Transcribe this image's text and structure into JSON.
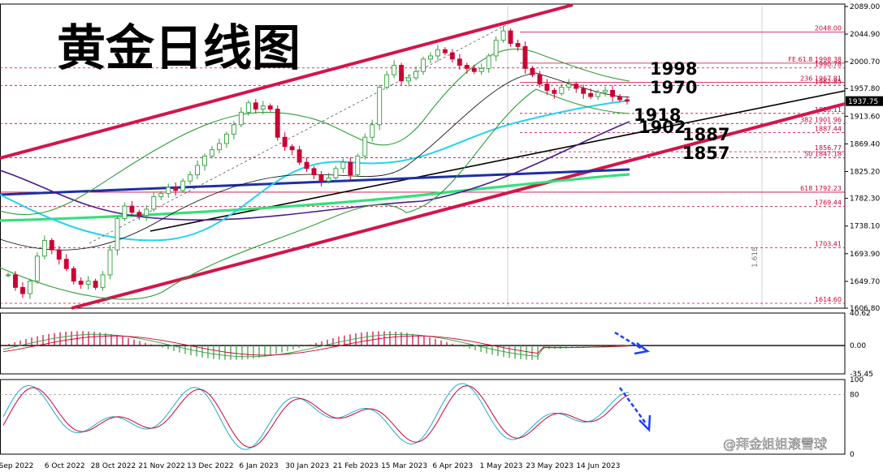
{
  "title": "黄金日线图",
  "watermark": "@拜金姐姐滚雪球",
  "current_price": "1937.75",
  "fib_vertical_label": "1.618",
  "colors": {
    "channel": "#d2154a",
    "bollinger": "#2e9e3a",
    "ma_cyan": "#22d3ee",
    "ma_blue": "#1d2fa8",
    "ma_green": "#34e07a",
    "ma_purple": "#4a1a8a",
    "trend_black": "#000000",
    "level_line": "#cc0033",
    "bull": "#2e9e3a",
    "bear": "#cc0033",
    "arrow": "#1e40ff"
  },
  "big_labels": [
    "1998",
    "1970",
    "1918",
    "1902",
    "1887",
    "1857"
  ],
  "chart_data": [
    {
      "type": "candlestick",
      "title": "黄金日线图",
      "x_labels": [
        "Sep 2022",
        "6 Oct 2022",
        "28 Oct 2022",
        "21 Nov 2022",
        "13 Dec 2022",
        "6 Jan 2023",
        "30 Jan 2023",
        "21 Feb 2023",
        "15 Mar 2023",
        "6 Apr 2023",
        "1 May 2023",
        "23 May 2023",
        "14 Jun 2023"
      ],
      "y_ticks": [
        "2089.00",
        "2044.90",
        "2000.70",
        "1957.80",
        "1913.60",
        "1869.40",
        "1825.20",
        "1782.30",
        "1738.10",
        "1693.90",
        "1649.70",
        "1606.80"
      ],
      "ylim": [
        1606.8,
        2089.0
      ],
      "levels": [
        {
          "label": "2048.00",
          "value": 2048.0
        },
        {
          "label": "FE 61.8",
          "value_label": "1998.38",
          "value": 1998.38
        },
        {
          "label": "",
          "value_label": "1990.78",
          "value": 1990.78
        },
        {
          "label": "236",
          "value_label": "1967.81",
          "value": 1967.81
        },
        {
          "label": "",
          "value_label": "1962.85",
          "value": 1962.85
        },
        {
          "label": "",
          "value_label": "1918.11",
          "value": 1918.11
        },
        {
          "label": "382",
          "value_label": "1901.96",
          "value": 1901.96
        },
        {
          "label": "",
          "value_label": "1887.44",
          "value": 1887.44
        },
        {
          "label": "",
          "value_label": "1856.77",
          "value": 1856.77
        },
        {
          "label": "50",
          "value_label": "1847.18",
          "value": 1847.18
        },
        {
          "label": "618",
          "value_label": "1792.23",
          "value": 1792.23
        },
        {
          "label": "",
          "value_label": "1769.44",
          "value": 1769.44
        },
        {
          "label": "",
          "value_label": "1703.41",
          "value": 1703.41
        },
        {
          "label": "",
          "value_label": "1614.60",
          "value": 1614.6
        }
      ],
      "close_path": [
        1660,
        1640,
        1630,
        1650,
        1690,
        1715,
        1700,
        1685,
        1670,
        1650,
        1645,
        1650,
        1640,
        1660,
        1700,
        1750,
        1770,
        1760,
        1755,
        1765,
        1785,
        1790,
        1800,
        1795,
        1810,
        1820,
        1835,
        1850,
        1860,
        1870,
        1885,
        1900,
        1920,
        1935,
        1925,
        1930,
        1925,
        1880,
        1865,
        1860,
        1840,
        1830,
        1820,
        1810,
        1815,
        1830,
        1840,
        1820,
        1850,
        1880,
        1900,
        1960,
        1980,
        1995,
        1970,
        1975,
        1985,
        2005,
        2010,
        2020,
        2015,
        2005,
        1995,
        1990,
        1985,
        1990,
        2010,
        2035,
        2050,
        2030,
        2025,
        1990,
        1980,
        1965,
        1955,
        1950,
        1960,
        1965,
        1958,
        1950,
        1945,
        1952,
        1955,
        1945,
        1940,
        1937.75
      ]
    },
    {
      "type": "macd",
      "y_ticks": [
        "40.62",
        "0.00",
        "-35.45"
      ],
      "ylim": [
        -35.45,
        40.62
      ]
    },
    {
      "type": "stochastic",
      "y_ticks": [
        "100",
        "80",
        "0"
      ],
      "ylim": [
        0,
        100
      ]
    }
  ]
}
